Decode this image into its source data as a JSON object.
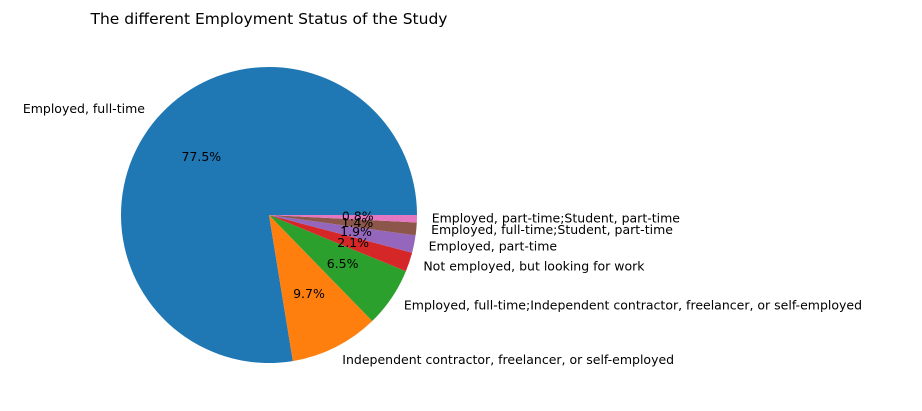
{
  "chart_data": {
    "type": "pie",
    "title": "The different Employment Status of the Study",
    "slices": [
      {
        "label": "Employed, full-time",
        "value": 77.5,
        "pct_label": "77.5%",
        "color": "#1f77b4"
      },
      {
        "label": "Independent contractor, freelancer, or self-employed",
        "value": 9.7,
        "pct_label": "9.7%",
        "color": "#ff7f0e"
      },
      {
        "label": "Employed, full-time;Independent contractor, freelancer, or self-employed",
        "value": 6.5,
        "pct_label": "6.5%",
        "color": "#2ca02c"
      },
      {
        "label": "Not employed, but looking for work",
        "value": 2.1,
        "pct_label": "2.1%",
        "color": "#d62728"
      },
      {
        "label": "Employed, part-time",
        "value": 1.9,
        "pct_label": "1.9%",
        "color": "#9467bd"
      },
      {
        "label": "Employed, full-time;Student, part-time",
        "value": 1.4,
        "pct_label": "1.4%",
        "color": "#8c564b"
      },
      {
        "label": "Employed, part-time;Student, part-time",
        "value": 0.8,
        "pct_label": "0.8%",
        "color": "#e377c2"
      }
    ]
  }
}
